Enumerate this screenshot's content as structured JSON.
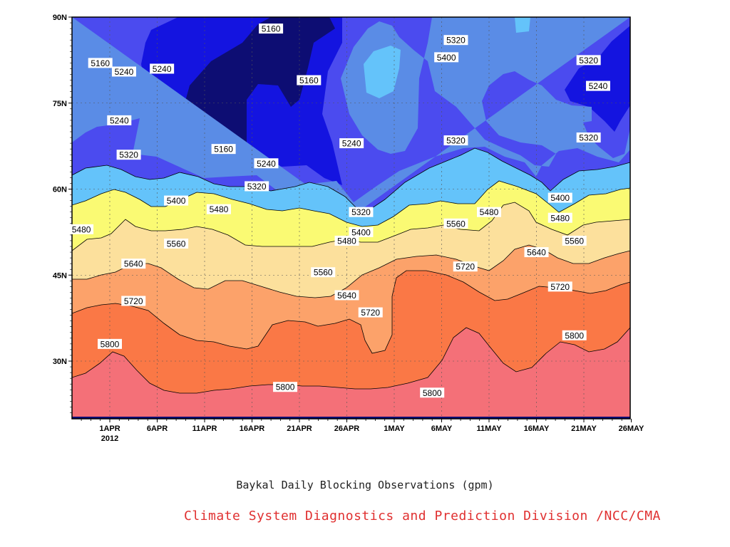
{
  "caption": {
    "main": "Baykal Daily Blocking Observations (gpm)",
    "credit": "Climate System Diagnostics and Prediction Division /NCC/CMA"
  },
  "chart_data": {
    "type": "contour",
    "title": "",
    "xlabel": "",
    "ylabel": "",
    "x_ticks": [
      "1APR",
      "6APR",
      "11APR",
      "16APR",
      "21APR",
      "26APR",
      "1MAY",
      "6MAY",
      "11MAY",
      "16MAY",
      "21MAY",
      "26MAY"
    ],
    "x_sublabel": "2012",
    "y_ticks": [
      "30N",
      "45N",
      "60N",
      "75N",
      "90N"
    ],
    "ylim": [
      20,
      90
    ],
    "xlim_days": [
      -4,
      55
    ],
    "grid": true,
    "levels": [
      5160,
      5240,
      5320,
      5400,
      5480,
      5560,
      5640,
      5720,
      5800
    ],
    "colors": {
      "below_5160": "#0d0d73",
      "5160_5240": "#1414e0",
      "5240_5320": "#4b4bef",
      "5320_5400": "#5a8ce6",
      "5400_5480": "#64c3fa",
      "5480_5560": "#fafa73",
      "5560_5640": "#fce09c",
      "5640_5720": "#fca26a",
      "5720_5800": "#fa7846",
      "above_5800": "#f47078"
    },
    "contour_labels": [
      {
        "value": 5160,
        "day": -1,
        "lat": 82
      },
      {
        "value": 5160,
        "day": 17,
        "lat": 88
      },
      {
        "value": 5160,
        "day": 12,
        "lat": 67
      },
      {
        "value": 5160,
        "day": 21,
        "lat": 79
      },
      {
        "value": 5240,
        "day": 1.5,
        "lat": 80.5
      },
      {
        "value": 5240,
        "day": 5.5,
        "lat": 81
      },
      {
        "value": 5240,
        "day": 1,
        "lat": 72
      },
      {
        "value": 5240,
        "day": 16.5,
        "lat": 64.5
      },
      {
        "value": 5240,
        "day": 25.5,
        "lat": 68
      },
      {
        "value": 5240,
        "day": 51.5,
        "lat": 78
      },
      {
        "value": 5320,
        "day": 2,
        "lat": 66
      },
      {
        "value": 5320,
        "day": 15.5,
        "lat": 60.5
      },
      {
        "value": 5320,
        "day": 26.5,
        "lat": 56
      },
      {
        "value": 5320,
        "day": 36.5,
        "lat": 68.5
      },
      {
        "value": 5320,
        "day": 36.5,
        "lat": 86
      },
      {
        "value": 5320,
        "day": 50.5,
        "lat": 82.5
      },
      {
        "value": 5320,
        "day": 50.5,
        "lat": 69
      },
      {
        "value": 5400,
        "day": 35.5,
        "lat": 83
      },
      {
        "value": 5400,
        "day": 7,
        "lat": 58
      },
      {
        "value": 5400,
        "day": 26.5,
        "lat": 52.5
      },
      {
        "value": 5400,
        "day": 47.5,
        "lat": 58.5
      },
      {
        "value": 5480,
        "day": -3,
        "lat": 53
      },
      {
        "value": 5480,
        "day": 11.5,
        "lat": 56.5
      },
      {
        "value": 5480,
        "day": 25,
        "lat": 51
      },
      {
        "value": 5480,
        "day": 40,
        "lat": 56
      },
      {
        "value": 5480,
        "day": 47.5,
        "lat": 55
      },
      {
        "value": 5560,
        "day": 7,
        "lat": 50.5
      },
      {
        "value": 5560,
        "day": 22.5,
        "lat": 45.5
      },
      {
        "value": 5560,
        "day": 36.5,
        "lat": 54
      },
      {
        "value": 5560,
        "day": 49,
        "lat": 51
      },
      {
        "value": 5640,
        "day": 2.5,
        "lat": 47
      },
      {
        "value": 5640,
        "day": 25,
        "lat": 41.5
      },
      {
        "value": 5640,
        "day": 45,
        "lat": 49
      },
      {
        "value": 5720,
        "day": 2.5,
        "lat": 40.5
      },
      {
        "value": 5720,
        "day": 27.5,
        "lat": 38.5
      },
      {
        "value": 5720,
        "day": 37.5,
        "lat": 46.5
      },
      {
        "value": 5720,
        "day": 47.5,
        "lat": 43
      },
      {
        "value": 5800,
        "day": 0,
        "lat": 33
      },
      {
        "value": 5800,
        "day": 18.5,
        "lat": 25.5
      },
      {
        "value": 5800,
        "day": 34,
        "lat": 24.5
      },
      {
        "value": 5800,
        "day": 49,
        "lat": 34.5
      }
    ]
  }
}
